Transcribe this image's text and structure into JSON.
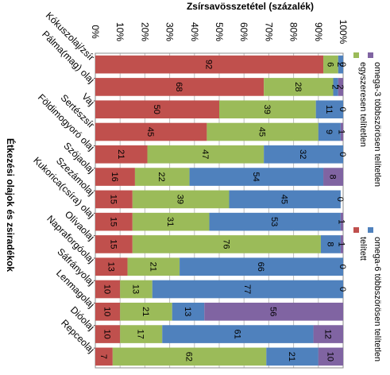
{
  "chart_data": {
    "type": "bar",
    "orientation": "horizontal",
    "stacked": "percent",
    "title": "Zsírsavösszetétel   (százalék)",
    "ylabel": "Étkezési olajok és zsiradékok",
    "xlim": [
      0,
      100
    ],
    "x_ticks": [
      "0%",
      "10%",
      "20%",
      "30%",
      "40%",
      "50%",
      "60%",
      "70%",
      "80%",
      "90%",
      "100%"
    ],
    "grid": true,
    "legend_position": "right",
    "categories": [
      "Kókuszolaj/zsír",
      "Pálma(mag) olaj",
      "Vaj",
      "Sertészsír",
      "Földimogyoró olaj",
      "Szójaolaj",
      "Szezámolaj",
      "Kukorica(csíra) olaj",
      "Olívaolaj",
      "Napraforgóolaj",
      "Sáfrányolaj",
      "Lenmagolaj",
      "Dióolaj",
      "Repceolaj"
    ],
    "series": [
      {
        "name": "telített",
        "color": "#c0504d",
        "values": [
          92,
          68,
          50,
          45,
          21,
          16,
          15,
          15,
          15,
          13,
          10,
          10,
          10,
          7
        ]
      },
      {
        "name": "egyszeresen telítetlen",
        "color": "#9bbb59",
        "values": [
          6,
          28,
          39,
          45,
          47,
          22,
          39,
          31,
          76,
          21,
          13,
          21,
          17,
          62
        ]
      },
      {
        "name": "omega-6 többszörösen telítetlen",
        "color": "#4f81bd",
        "values": [
          2,
          2,
          11,
          9,
          32,
          54,
          45,
          53,
          8,
          66,
          77,
          13,
          61,
          21
        ]
      },
      {
        "name": "omega-3 többszörösen telítetlen",
        "color": "#8064a2",
        "values": [
          0,
          2,
          0,
          1,
          0,
          8,
          0,
          1,
          1,
          0,
          0,
          56,
          12,
          10
        ]
      }
    ]
  }
}
